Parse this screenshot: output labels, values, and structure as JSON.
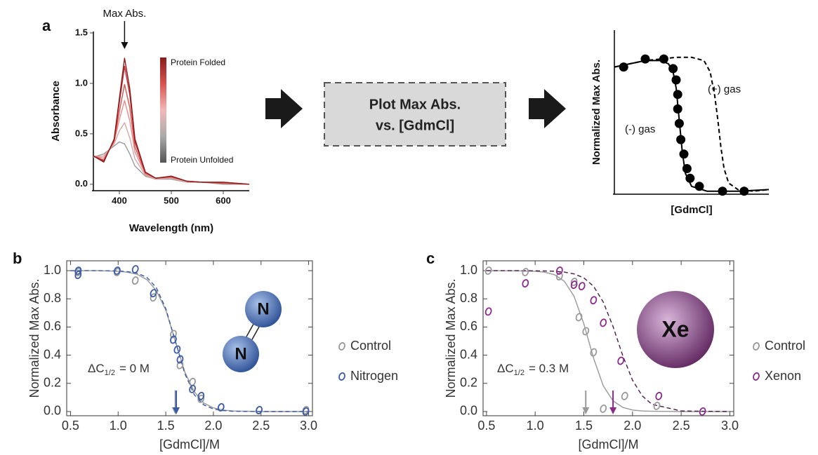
{
  "chart_data": [
    {
      "type": "line",
      "panel_label": "a",
      "xlabel": "Wavelength (nm)",
      "ylabel": "Absorbance",
      "xlim": [
        350,
        650
      ],
      "ylim": [
        -0.05,
        1.5
      ],
      "xticks": [
        400,
        500,
        600
      ],
      "yticks": [
        {
          "value": 0,
          "label": "0.0"
        },
        0.5,
        {
          "value": 1,
          "label": "1.0"
        },
        1.5
      ],
      "x": [
        350,
        370,
        390,
        400,
        410,
        420,
        430,
        450,
        470,
        500,
        530,
        560,
        600,
        650
      ],
      "series": [
        {
          "color": "#999999",
          "values": [
            0.27,
            0.3,
            0.38,
            0.42,
            0.4,
            0.3,
            0.18,
            0.08,
            0.05,
            0.05,
            0.02,
            0.02,
            0.0,
            0.0
          ]
        },
        {
          "color": "#d8a8a8",
          "values": [
            0.27,
            0.28,
            0.4,
            0.53,
            0.61,
            0.46,
            0.25,
            0.09,
            0.05,
            0.06,
            0.02,
            0.02,
            0.01,
            0.0
          ]
        },
        {
          "color": "#e88c8c",
          "values": [
            0.28,
            0.26,
            0.42,
            0.64,
            0.83,
            0.63,
            0.32,
            0.1,
            0.06,
            0.07,
            0.03,
            0.02,
            0.01,
            0.0
          ]
        },
        {
          "color": "#d9534f",
          "values": [
            0.28,
            0.24,
            0.43,
            0.72,
            0.99,
            0.76,
            0.37,
            0.11,
            0.06,
            0.07,
            0.03,
            0.02,
            0.01,
            0.0
          ]
        },
        {
          "color": "#c0282d",
          "values": [
            0.28,
            0.23,
            0.44,
            0.81,
            1.17,
            0.89,
            0.42,
            0.12,
            0.06,
            0.08,
            0.03,
            0.02,
            0.02,
            0.0
          ]
        },
        {
          "color": "#8b1a1a",
          "values": [
            0.28,
            0.22,
            0.45,
            0.85,
            1.25,
            0.95,
            0.45,
            0.12,
            0.06,
            0.08,
            0.03,
            0.02,
            0.02,
            0.0
          ]
        }
      ],
      "peak_annotation": {
        "text": "Max Abs.",
        "x": 410
      },
      "colorbar": {
        "top_label": "Protein Folded",
        "bottom_label": "Protein Unfolded",
        "colors": [
          "#8b1a1a",
          "#d9534f",
          "#f2b8b8",
          "#aaaaaa",
          "#555555"
        ]
      }
    },
    {
      "type": "scatter",
      "xlabel": "[GdmCl]",
      "ylabel": "Normalized Max Abs.",
      "xlim": [
        0,
        1
      ],
      "ylim": [
        0,
        1
      ],
      "series": [
        {
          "color": "#000000",
          "marker": "filled",
          "x": [
            0.06,
            0.2,
            0.32,
            0.38,
            0.4,
            0.41,
            0.41,
            0.42,
            0.43,
            0.45,
            0.47,
            0.49,
            0.55,
            0.7,
            0.84
          ],
          "values": [
            0.78,
            0.83,
            0.83,
            0.77,
            0.7,
            0.61,
            0.52,
            0.43,
            0.33,
            0.24,
            0.15,
            0.09,
            0.04,
            0.01,
            0.01
          ]
        }
      ],
      "fits": [
        {
          "color": "#000000",
          "dashed": false,
          "x": [
            0.0,
            0.1,
            0.2,
            0.3,
            0.35,
            0.38,
            0.4,
            0.42,
            0.44,
            0.46,
            0.5,
            0.6,
            0.8,
            1.0
          ],
          "values": [
            0.78,
            0.8,
            0.82,
            0.82,
            0.8,
            0.75,
            0.65,
            0.45,
            0.25,
            0.12,
            0.04,
            0.01,
            0.01,
            0.02
          ]
        },
        {
          "color": "#000000",
          "dashed": true,
          "x": [
            0.0,
            0.2,
            0.4,
            0.5,
            0.58,
            0.62,
            0.65,
            0.67,
            0.69,
            0.71,
            0.74,
            0.8,
            0.9,
            1.0
          ],
          "values": [
            0.78,
            0.82,
            0.84,
            0.84,
            0.82,
            0.75,
            0.6,
            0.45,
            0.28,
            0.15,
            0.06,
            0.02,
            0.01,
            0.02
          ]
        }
      ],
      "curve_labels": [
        "(-) gas",
        "(+) gas"
      ]
    },
    {
      "type": "scatter",
      "panel_label": "b",
      "xlabel": "[GdmCl]/M",
      "ylabel": "Normalized Max Abs.",
      "xlim": [
        0.46,
        3.04
      ],
      "ylim": [
        -0.03,
        1.07
      ],
      "xticks": [
        0.5,
        {
          "value": 1,
          "label": "1.0"
        },
        1.5,
        {
          "value": 2,
          "label": "2.0"
        },
        2.5,
        {
          "value": 3,
          "label": "3.0"
        }
      ],
      "yticks": [
        {
          "value": 0,
          "label": "0.0"
        },
        0.2,
        0.4,
        0.6,
        0.8,
        {
          "value": 1,
          "label": "1.0"
        }
      ],
      "legend": true,
      "series": [
        {
          "name": "Control",
          "color": "#999999",
          "marker": "open",
          "x": [
            0.58,
            0.99,
            1.18,
            1.37,
            1.58,
            1.65,
            1.78,
            1.87,
            2.08,
            2.48,
            2.97
          ],
          "values": [
            0.99,
            0.99,
            0.93,
            0.81,
            0.55,
            0.33,
            0.21,
            0.09,
            0.03,
            0.01,
            0.01
          ]
        },
        {
          "name": "Nitrogen",
          "color": "#3b5ba5",
          "marker": "open",
          "x": [
            0.58,
            0.58,
            0.99,
            1.18,
            1.37,
            1.58,
            1.62,
            1.65,
            1.78,
            1.87,
            2.08,
            2.48,
            2.97
          ],
          "values": [
            0.97,
            1.0,
            1.0,
            1.01,
            0.84,
            0.51,
            0.44,
            0.37,
            0.16,
            0.11,
            0.03,
            0.01,
            0.0
          ]
        }
      ],
      "fits": [
        {
          "color": "#999999",
          "dashed": false,
          "x": [
            0.5,
            0.8,
            1.0,
            1.1,
            1.2,
            1.3,
            1.4,
            1.5,
            1.6,
            1.7,
            1.8,
            1.9,
            2.0,
            2.1,
            2.2,
            2.5,
            3.0
          ],
          "values": [
            1.0,
            1.0,
            0.996,
            0.989,
            0.974,
            0.937,
            0.86,
            0.72,
            0.5,
            0.28,
            0.14,
            0.06,
            0.026,
            0.011,
            0.004,
            0.0,
            0.0
          ]
        },
        {
          "color": "#3b5ba5",
          "dashed": true,
          "x": [
            0.5,
            0.8,
            1.0,
            1.1,
            1.2,
            1.3,
            1.4,
            1.5,
            1.6,
            1.7,
            1.8,
            1.9,
            2.0,
            2.1,
            2.2,
            2.5,
            3.0
          ],
          "values": [
            1.0,
            1.0,
            0.998,
            0.993,
            0.982,
            0.953,
            0.881,
            0.731,
            0.5,
            0.269,
            0.119,
            0.047,
            0.018,
            0.007,
            0.002,
            0.0,
            0.0
          ]
        }
      ],
      "arrows": [
        {
          "x": 1.6,
          "color": "#999999"
        },
        {
          "x": 1.61,
          "color": "#3b5ba5"
        }
      ],
      "annotation": {
        "text": "ΔC",
        "subscript": "1/2",
        "suffix": "= 0 M"
      },
      "icon": {
        "labels": [
          "N",
          "N"
        ]
      }
    },
    {
      "type": "scatter",
      "panel_label": "c",
      "xlabel": "[GdmCl]/M",
      "ylabel": "Normalized Max Abs.",
      "xlim": [
        0.465,
        3.04
      ],
      "ylim": [
        -0.03,
        1.07
      ],
      "xticks": [
        0.5,
        {
          "value": 1,
          "label": "1.0"
        },
        1.5,
        {
          "value": 2,
          "label": "2.0"
        },
        2.5,
        {
          "value": 3,
          "label": "3.0"
        }
      ],
      "yticks": [
        {
          "value": 0,
          "label": "0.0"
        },
        0.2,
        0.4,
        0.6,
        0.8,
        {
          "value": 1,
          "label": "1.0"
        }
      ],
      "legend": true,
      "series": [
        {
          "name": "Control",
          "color": "#999999",
          "marker": "open",
          "x": [
            0.52,
            0.9,
            1.25,
            1.4,
            1.45,
            1.52,
            1.6,
            1.7,
            1.92,
            2.25
          ],
          "values": [
            1.0,
            0.99,
            0.96,
            0.92,
            0.67,
            0.57,
            0.42,
            0.02,
            0.11,
            0.04
          ]
        },
        {
          "name": "Xenon",
          "color": "#8a2a8a",
          "marker": "open",
          "x": [
            0.52,
            0.9,
            1.25,
            1.4,
            1.48,
            1.6,
            1.7,
            1.88,
            2.27,
            2.72
          ],
          "values": [
            0.71,
            0.91,
            1.0,
            0.9,
            0.89,
            0.79,
            0.63,
            0.36,
            0.11,
            0.0
          ]
        }
      ],
      "fits": [
        {
          "color": "#999999",
          "dashed": false,
          "x": [
            0.5,
            0.8,
            1.0,
            1.1,
            1.2,
            1.3,
            1.4,
            1.5,
            1.6,
            1.7,
            1.8,
            1.9,
            2.0,
            2.1,
            2.2,
            2.5,
            3.0
          ],
          "values": [
            1.0,
            0.999,
            0.996,
            0.989,
            0.971,
            0.924,
            0.818,
            0.622,
            0.378,
            0.182,
            0.076,
            0.029,
            0.011,
            0.004,
            0.002,
            0.0,
            0.0
          ]
        },
        {
          "color": "#4a1a4a",
          "dashed": true,
          "x": [
            0.5,
            0.8,
            1.0,
            1.1,
            1.2,
            1.3,
            1.4,
            1.5,
            1.6,
            1.7,
            1.8,
            1.9,
            2.0,
            2.1,
            2.2,
            2.5,
            3.0
          ],
          "values": [
            1.0,
            1.0,
            0.999,
            0.998,
            0.996,
            0.99,
            0.977,
            0.949,
            0.889,
            0.777,
            0.603,
            0.397,
            0.223,
            0.111,
            0.051,
            0.004,
            0.0
          ]
        }
      ],
      "arrows": [
        {
          "x": 1.52,
          "color": "#999999"
        },
        {
          "x": 1.8,
          "color": "#8a2a8a"
        }
      ],
      "annotation": {
        "text": "ΔC",
        "subscript": "1/2",
        "suffix": "= 0.3 M"
      },
      "icon": {
        "labels": [
          "Xe"
        ]
      }
    }
  ],
  "diagram": {
    "box_lines": [
      "Plot Max Abs.",
      "vs. [GdmCl]"
    ]
  }
}
